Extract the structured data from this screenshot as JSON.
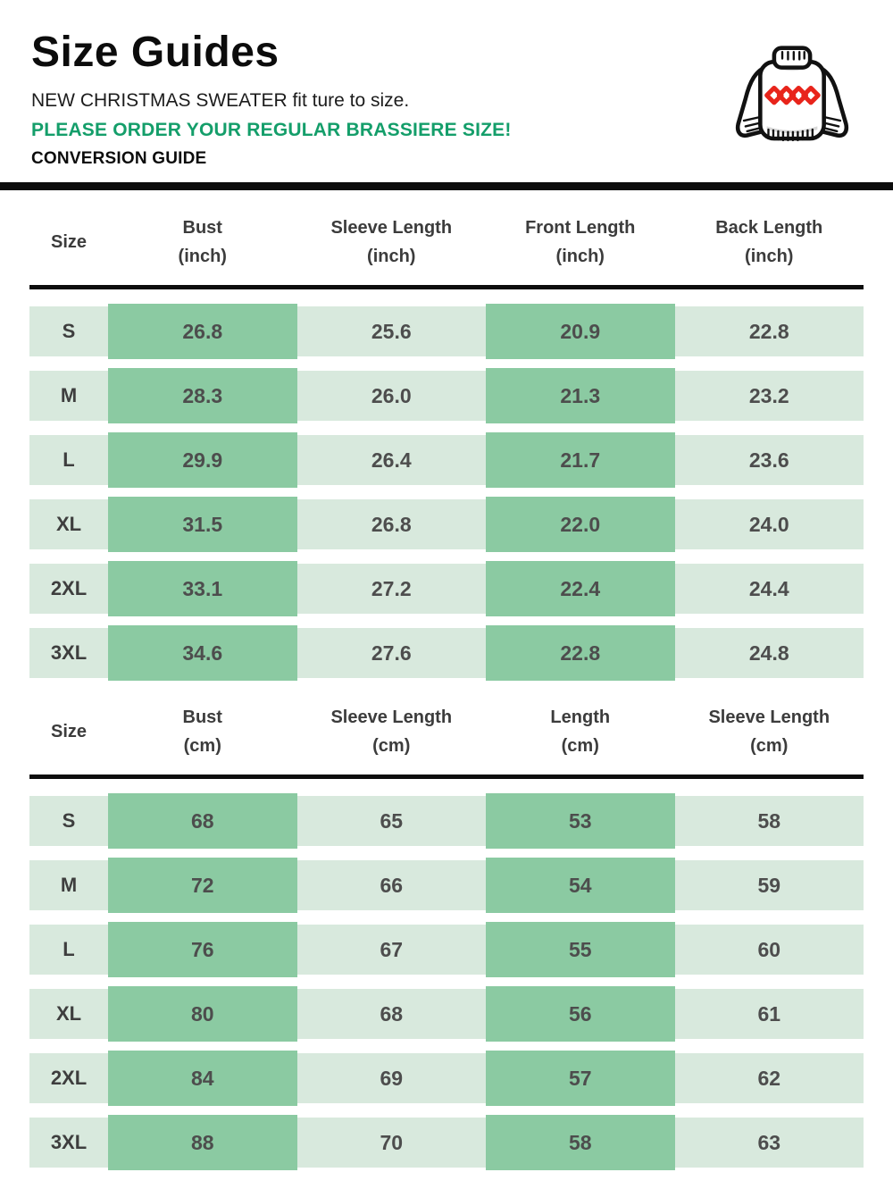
{
  "header": {
    "title": "Size Guides",
    "subtitle": "NEW CHRISTMAS SWEATER fit ture to size.",
    "notice": "PLEASE ORDER YOUR REGULAR BRASSIERE SIZE!",
    "guide_label": "CONVERSION GUIDE",
    "icon": "christmas-sweater-icon"
  },
  "colors": {
    "accent_green": "#149e6a",
    "cell_highlight_green": "#8bcaa2",
    "cell_light_green": "#d8e9dd",
    "rule_black": "#0d0d0d",
    "cell_text": "#4d4d4d",
    "diamond_red": "#e8241b"
  },
  "tables": [
    {
      "name": "size-table-inch",
      "columns": [
        "Size",
        "Bust\n(inch)",
        "Sleeve Length\n(inch)",
        "Front Length\n(inch)",
        "Back Length\n(inch)"
      ],
      "highlight_value_columns": [
        0,
        2
      ],
      "rows": [
        {
          "size": "S",
          "values": [
            "26.8",
            "25.6",
            "20.9",
            "22.8"
          ]
        },
        {
          "size": "M",
          "values": [
            "28.3",
            "26.0",
            "21.3",
            "23.2"
          ]
        },
        {
          "size": "L",
          "values": [
            "29.9",
            "26.4",
            "21.7",
            "23.6"
          ]
        },
        {
          "size": "XL",
          "values": [
            "31.5",
            "26.8",
            "22.0",
            "24.0"
          ]
        },
        {
          "size": "2XL",
          "values": [
            "33.1",
            "27.2",
            "22.4",
            "24.4"
          ]
        },
        {
          "size": "3XL",
          "values": [
            "34.6",
            "27.6",
            "22.8",
            "24.8"
          ]
        }
      ]
    },
    {
      "name": "size-table-cm",
      "columns": [
        "Size",
        "Bust\n(cm)",
        "Sleeve Length\n(cm)",
        "Length\n(cm)",
        "Sleeve Length\n(cm)"
      ],
      "highlight_value_columns": [
        0,
        2
      ],
      "rows": [
        {
          "size": "S",
          "values": [
            "68",
            "65",
            "53",
            "58"
          ]
        },
        {
          "size": "M",
          "values": [
            "72",
            "66",
            "54",
            "59"
          ]
        },
        {
          "size": "L",
          "values": [
            "76",
            "67",
            "55",
            "60"
          ]
        },
        {
          "size": "XL",
          "values": [
            "80",
            "68",
            "56",
            "61"
          ]
        },
        {
          "size": "2XL",
          "values": [
            "84",
            "69",
            "57",
            "62"
          ]
        },
        {
          "size": "3XL",
          "values": [
            "88",
            "70",
            "58",
            "63"
          ]
        }
      ]
    }
  ]
}
